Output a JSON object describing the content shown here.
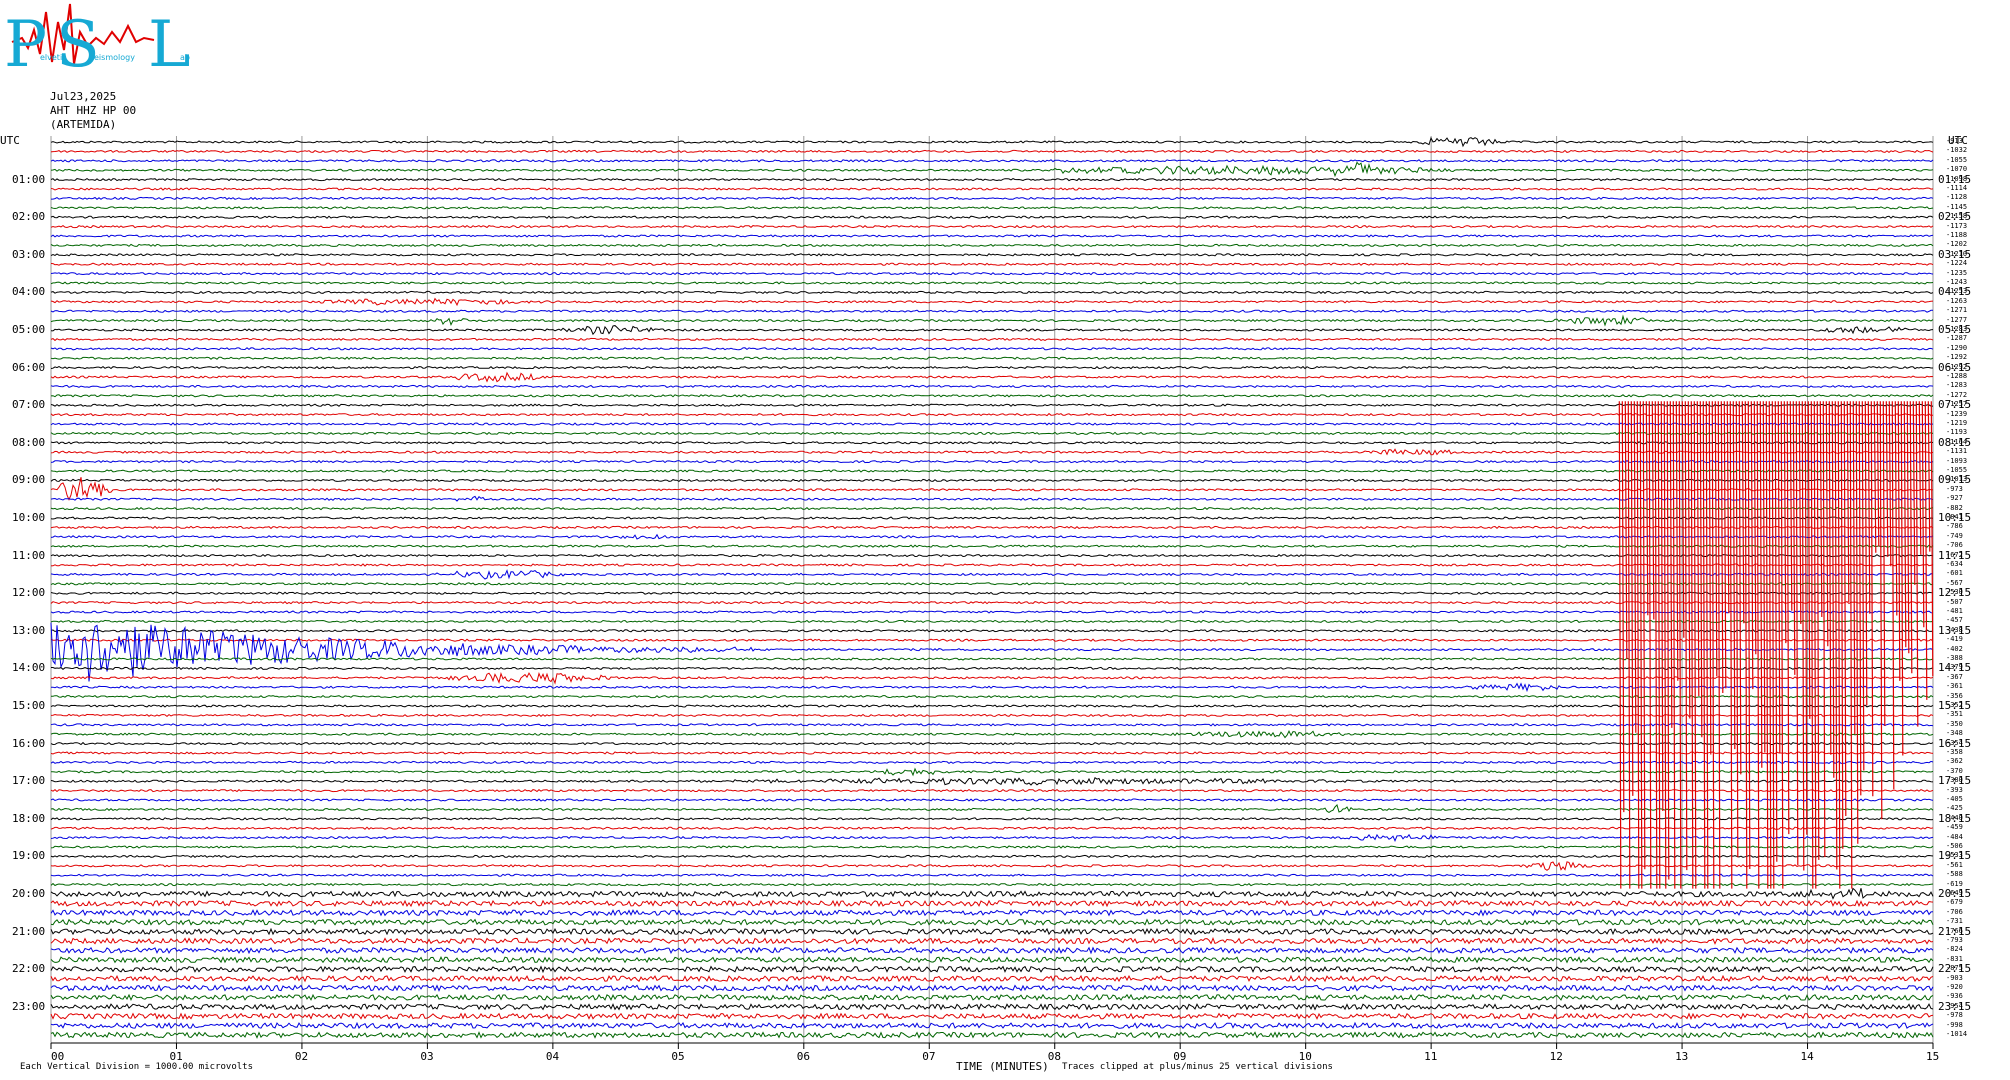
{
  "logo": {
    "big": "PSL",
    "small": [
      "elvetic",
      "eismology",
      "ab"
    ]
  },
  "header": {
    "date": "Jul23,2025",
    "channel": "AHT HHZ HP 00",
    "station": "(ARTEMIDA)"
  },
  "left_axis_title": "UTC",
  "right_axis_title": "UTC",
  "footer": {
    "division": "Each Vertical Division = 1000.00 microvolts",
    "xlabel": "TIME (MINUTES)",
    "clip": "Traces clipped at plus/minus 25 vertical divisions"
  },
  "chart_data": {
    "type": "line",
    "title": "",
    "xlabel": "TIME (MINUTES)",
    "x_range": [
      0,
      15
    ],
    "x_ticks": [
      "00",
      "01",
      "02",
      "03",
      "04",
      "05",
      "06",
      "07",
      "08",
      "09",
      "10",
      "11",
      "12",
      "13",
      "14",
      "15"
    ],
    "left_labels": [
      "01:00",
      "02:00",
      "03:00",
      "04:00",
      "05:00",
      "06:00",
      "07:00",
      "08:00",
      "09:00",
      "10:00",
      "11:00",
      "12:00",
      "13:00",
      "14:00",
      "15:00",
      "16:00",
      "17:00",
      "18:00",
      "19:00",
      "20:00",
      "21:00",
      "22:00",
      "23:00"
    ],
    "right_labels": [
      "01:15",
      "02:15",
      "03:15",
      "04:15",
      "05:15",
      "06:15",
      "07:15",
      "08:15",
      "09:15",
      "10:15",
      "11:15",
      "12:15",
      "13:15",
      "14:15",
      "15:15",
      "16:15",
      "17:15",
      "18:15",
      "19:15",
      "20:15",
      "21:15",
      "22:15",
      "23:15"
    ],
    "trace_count": 96,
    "trace_colors": [
      "#000000",
      "#e00000",
      "#0000e0",
      "#006400"
    ],
    "trace_offsets": [
      "-913",
      "-1032",
      "-1055",
      "-1070",
      "-1098",
      "-1114",
      "-1128",
      "-1145",
      "-1158",
      "-1173",
      "-1188",
      "-1202",
      "-1210",
      "-1224",
      "-1235",
      "-1243",
      "-1253",
      "-1263",
      "-1271",
      "-1277",
      "-1283",
      "-1287",
      "-1290",
      "-1292",
      "-1292",
      "-1288",
      "-1283",
      "-1272",
      "-1257",
      "-1239",
      "-1219",
      "-1193",
      "-1164",
      "-1131",
      "-1093",
      "-1055",
      "-1013",
      "-973",
      "-927",
      "-882",
      "-841",
      "-786",
      "-749",
      "-706",
      "-672",
      "-634",
      "-601",
      "-567",
      "-530",
      "-507",
      "-481",
      "-457",
      "-438",
      "-419",
      "-402",
      "-388",
      "-379",
      "-367",
      "-361",
      "-356",
      "-352",
      "-351",
      "-350",
      "-348",
      "-354",
      "-358",
      "-362",
      "-370",
      "-380",
      "-393",
      "-405",
      "-425",
      "-440",
      "-459",
      "-484",
      "-506",
      "-533",
      "-561",
      "-588",
      "-619",
      "-649",
      "-679",
      "-706",
      "-731",
      "-766",
      "-793",
      "-824",
      "-831",
      "-875",
      "-903",
      "-920",
      "-936",
      "-954",
      "-978",
      "-998",
      "-1014"
    ],
    "events": [
      {
        "trace": 0,
        "start_min": 10.85,
        "end_min": 11.6,
        "amp": 5
      },
      {
        "trace": 3,
        "start_min": 10.2,
        "end_min": 10.6,
        "amp": 7
      },
      {
        "trace": 3,
        "start_min": 8.0,
        "end_min": 11.2,
        "amp": 4,
        "kind": "long"
      },
      {
        "trace": 20,
        "start_min": 13.9,
        "end_min": 15.0,
        "amp": 3
      },
      {
        "trace": 17,
        "start_min": 2.0,
        "end_min": 4.0,
        "amp": 3
      },
      {
        "trace": 19,
        "start_min": 3.0,
        "end_min": 3.4,
        "amp": 4
      },
      {
        "trace": 19,
        "start_min": 11.9,
        "end_min": 12.9,
        "amp": 4
      },
      {
        "trace": 20,
        "start_min": 4.0,
        "end_min": 4.9,
        "amp": 4
      },
      {
        "trace": 25,
        "start_min": 3.1,
        "end_min": 4.0,
        "amp": 4
      },
      {
        "trace": 33,
        "start_min": 10.3,
        "end_min": 11.3,
        "amp": 3
      },
      {
        "trace": 37,
        "start_min": 0.0,
        "end_min": 0.5,
        "amp": 14
      },
      {
        "trace": 38,
        "start_min": 3.2,
        "end_min": 3.5,
        "amp": 3
      },
      {
        "trace": 42,
        "start_min": 4.5,
        "end_min": 5.0,
        "amp": 3
      },
      {
        "trace": 46,
        "start_min": 3.0,
        "end_min": 4.2,
        "amp": 4
      },
      {
        "trace": 54,
        "start_min": 0.0,
        "end_min": 5.6,
        "amp": 40,
        "kind": "decay"
      },
      {
        "trace": 57,
        "start_min": 3.0,
        "end_min": 4.6,
        "amp": 5
      },
      {
        "trace": 58,
        "start_min": 11.2,
        "end_min": 12.2,
        "amp": 3
      },
      {
        "trace": 63,
        "start_min": 8.9,
        "end_min": 10.4,
        "amp": 3
      },
      {
        "trace": 67,
        "start_min": 6.5,
        "end_min": 7.2,
        "amp": 4
      },
      {
        "trace": 68,
        "start_min": 4.9,
        "end_min": 10.8,
        "amp": 3
      },
      {
        "trace": 71,
        "start_min": 10.1,
        "end_min": 10.4,
        "amp": 4
      },
      {
        "trace": 74,
        "start_min": 10.2,
        "end_min": 11.2,
        "amp": 3
      },
      {
        "trace": 77,
        "start_min": 11.7,
        "end_min": 12.3,
        "amp": 5
      },
      {
        "trace": 80,
        "start_min": 13.9,
        "end_min": 14.7,
        "amp": 4
      }
    ],
    "clipped_event": {
      "trace": 29,
      "start_min": 12.5,
      "end_min": 15.0,
      "clip_top_trace": 28,
      "clip_bottom_trace": 79
    },
    "noise_trace_start": 80
  }
}
